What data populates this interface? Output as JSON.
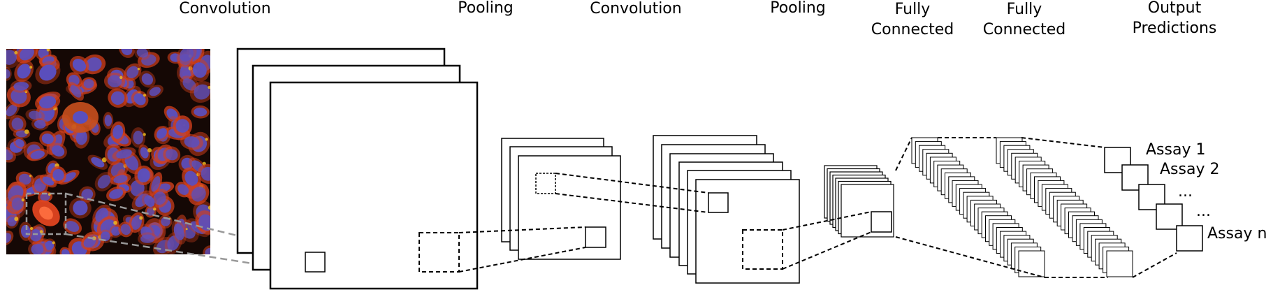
{
  "labels": {
    "conv1": "Convolution",
    "pool1": "Pooling",
    "conv2": "Convolution",
    "pool2": "Pooling",
    "fc1_line1": "Fully",
    "fc1_line2": "Connected",
    "fc2_line1": "Fully",
    "fc2_line2": "Connected",
    "out_line1": "Output",
    "out_line2": "Predictions"
  },
  "assays": {
    "a1": "Assay 1",
    "a2": "Assay 2",
    "e1": "...",
    "e2": "...",
    "an": "Assay n"
  },
  "colors": {
    "stroke": "#000000",
    "image_projection": "#999999",
    "cell_background": "#150805",
    "cytoplasm": "#d2401c",
    "nucleus": "#5a4fbe",
    "nucleolus_highlight": "#f0c020"
  },
  "layers": {
    "pool2_channels": 7,
    "fc_neurons_per_layer": 30
  }
}
